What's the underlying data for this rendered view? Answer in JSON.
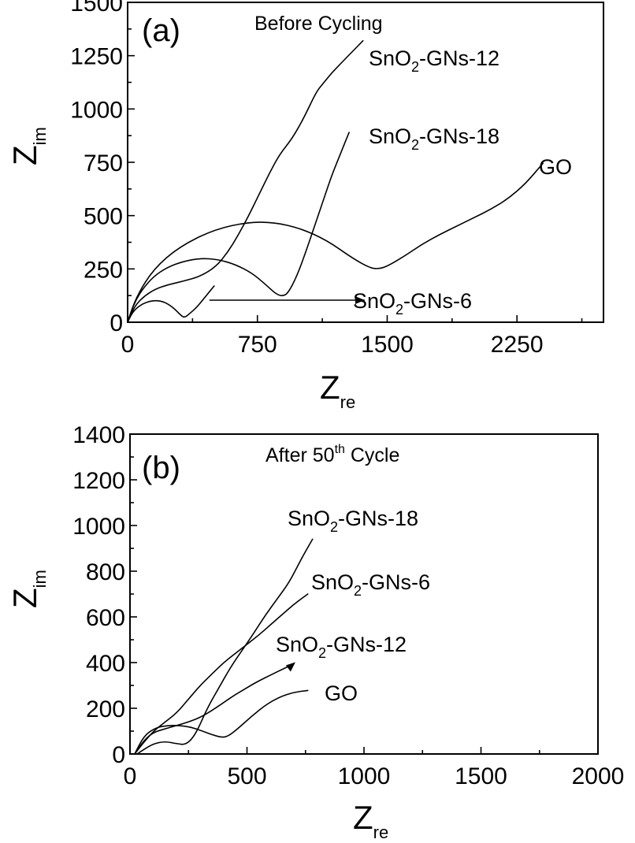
{
  "figure": {
    "panels": [
      {
        "letter": "(a)",
        "title": "Before Cycling",
        "title_sup": ""
      },
      {
        "letter": "(b)",
        "title": "After 50",
        "title_sup": "th",
        "title_suffix": " Cycle"
      }
    ]
  },
  "chart_data": [
    {
      "type": "line",
      "panel": "(a)",
      "title": "Before Cycling",
      "xlabel": "Z_re",
      "ylabel": "Z_im",
      "xlim": [
        0,
        2750
      ],
      "ylim": [
        0,
        1500
      ],
      "xticks": [
        0,
        750,
        1500,
        2250
      ],
      "yticks": [
        0,
        250,
        500,
        750,
        1000,
        1250,
        1500
      ],
      "x_minor_step": 375,
      "y_minor_step": 125,
      "grid": false,
      "series": [
        {
          "name": "SnO2-GNs-12",
          "x": [
            0,
            20,
            50,
            100,
            160,
            230,
            320,
            420,
            510,
            580,
            640,
            700,
            760,
            820,
            880,
            950,
            1020,
            1090,
            1130,
            1180,
            1240,
            1300,
            1360
          ],
          "y": [
            0,
            40,
            85,
            125,
            155,
            175,
            192,
            215,
            260,
            330,
            410,
            500,
            600,
            700,
            790,
            860,
            960,
            1080,
            1120,
            1170,
            1220,
            1270,
            1320
          ]
        },
        {
          "name": "SnO2-GNs-18",
          "x": [
            0,
            30,
            80,
            150,
            230,
            320,
            420,
            520,
            620,
            720,
            800,
            860,
            900,
            930,
            980,
            1030,
            1080,
            1130,
            1180,
            1230,
            1280
          ],
          "y": [
            0,
            75,
            150,
            215,
            258,
            285,
            300,
            295,
            272,
            230,
            175,
            130,
            122,
            140,
            220,
            330,
            450,
            570,
            690,
            790,
            890
          ]
        },
        {
          "name": "GO",
          "x": [
            0,
            50,
            150,
            300,
            500,
            700,
            850,
            1000,
            1150,
            1300,
            1400,
            1450,
            1500,
            1600,
            1700,
            1800,
            1900,
            2000,
            2100,
            2200,
            2300,
            2400
          ],
          "y": [
            0,
            120,
            250,
            355,
            435,
            470,
            468,
            440,
            385,
            300,
            255,
            250,
            262,
            310,
            365,
            410,
            450,
            490,
            530,
            580,
            650,
            745
          ]
        },
        {
          "name": "SnO2-GNs-6",
          "x": [
            0,
            30,
            80,
            140,
            200,
            260,
            310,
            330,
            350,
            400,
            460,
            500
          ],
          "y": [
            0,
            50,
            85,
            102,
            100,
            72,
            30,
            22,
            35,
            70,
            130,
            170
          ],
          "annotation_arrow_to_x": 1370
        }
      ]
    },
    {
      "type": "line",
      "panel": "(b)",
      "title": "After 50th Cycle",
      "xlabel": "Z_re",
      "ylabel": "Z_im",
      "xlim": [
        0,
        2000
      ],
      "ylim": [
        0,
        1400
      ],
      "xticks": [
        0,
        500,
        1000,
        1500,
        2000
      ],
      "yticks": [
        0,
        200,
        400,
        600,
        800,
        1000,
        1200,
        1400
      ],
      "x_minor_step": 250,
      "y_minor_step": 100,
      "grid": false,
      "series": [
        {
          "name": "SnO2-GNs-18",
          "x": [
            30,
            60,
            100,
            150,
            200,
            240,
            280,
            330,
            380,
            430,
            480,
            530,
            580,
            630,
            680,
            730,
            780
          ],
          "y": [
            0,
            20,
            45,
            55,
            45,
            40,
            85,
            200,
            290,
            380,
            455,
            530,
            610,
            680,
            750,
            850,
            940
          ]
        },
        {
          "name": "SnO2-GNs-6",
          "x": [
            20,
            50,
            100,
            150,
            200,
            250,
            300,
            350,
            400,
            450,
            500,
            550,
            600,
            650,
            700,
            760
          ],
          "y": [
            0,
            40,
            100,
            140,
            180,
            240,
            300,
            350,
            400,
            440,
            480,
            520,
            565,
            610,
            655,
            700
          ]
        },
        {
          "name": "SnO2-GNs-12",
          "x": [
            20,
            60,
            100,
            150,
            200,
            250,
            300,
            350,
            400,
            450,
            500,
            550,
            600,
            650,
            700
          ],
          "y": [
            0,
            60,
            95,
            110,
            125,
            140,
            160,
            190,
            225,
            260,
            290,
            320,
            345,
            370,
            395
          ]
        },
        {
          "name": "GO",
          "x": [
            20,
            60,
            110,
            160,
            210,
            260,
            310,
            350,
            390,
            420,
            460,
            520,
            580,
            640,
            700,
            760
          ],
          "y": [
            0,
            80,
            115,
            125,
            125,
            118,
            100,
            85,
            72,
            78,
            110,
            165,
            215,
            250,
            270,
            278
          ]
        }
      ]
    }
  ]
}
